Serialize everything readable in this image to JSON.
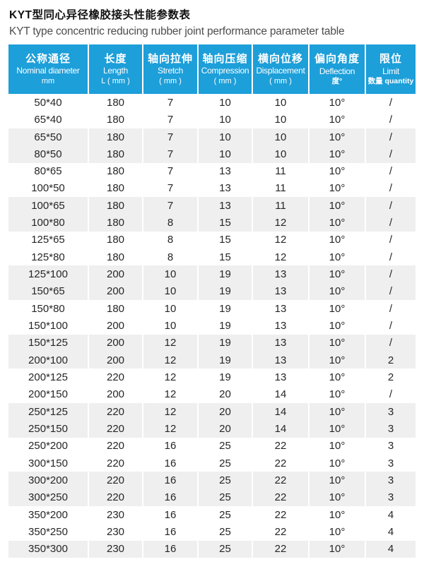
{
  "page": {
    "title_zh": "KYT型同心异径橡胶接头性能参数表",
    "title_en": "KYT type concentric reducing rubber joint performance parameter table"
  },
  "colors": {
    "header_bg": "#1d9fd9",
    "band_bg": "#efefef",
    "body_text": "#262626",
    "subtitle_text": "#4d4d4d"
  },
  "table": {
    "columns": [
      {
        "zh": "公称通径",
        "en": "Nominal diameter",
        "unit": "mm"
      },
      {
        "zh": "长度",
        "en": "Length",
        "unit": "L ( mm )"
      },
      {
        "zh": "轴向拉伸",
        "en": "Stretch",
        "unit": "( mm )"
      },
      {
        "zh": "轴向压缩",
        "en": "Compression",
        "unit": "( mm )"
      },
      {
        "zh": "横向位移",
        "en": "Displacement",
        "unit": "( mm )"
      },
      {
        "zh": "偏向角度",
        "en": "Deflection",
        "unit": "度°"
      },
      {
        "zh": "限位",
        "en": "Limit",
        "unit": "数量 quantity"
      }
    ],
    "rows": [
      [
        "50*40",
        "180",
        "7",
        "10",
        "10",
        "10°",
        "/"
      ],
      [
        "65*40",
        "180",
        "7",
        "10",
        "10",
        "10°",
        "/"
      ],
      [
        "65*50",
        "180",
        "7",
        "10",
        "10",
        "10°",
        "/"
      ],
      [
        "80*50",
        "180",
        "7",
        "10",
        "10",
        "10°",
        "/"
      ],
      [
        "80*65",
        "180",
        "7",
        "13",
        "11",
        "10°",
        "/"
      ],
      [
        "100*50",
        "180",
        "7",
        "13",
        "11",
        "10°",
        "/"
      ],
      [
        "100*65",
        "180",
        "7",
        "13",
        "11",
        "10°",
        "/"
      ],
      [
        "100*80",
        "180",
        "8",
        "15",
        "12",
        "10°",
        "/"
      ],
      [
        "125*65",
        "180",
        "8",
        "15",
        "12",
        "10°",
        "/"
      ],
      [
        "125*80",
        "180",
        "8",
        "15",
        "12",
        "10°",
        "/"
      ],
      [
        "125*100",
        "200",
        "10",
        "19",
        "13",
        "10°",
        "/"
      ],
      [
        "150*65",
        "200",
        "10",
        "19",
        "13",
        "10°",
        "/"
      ],
      [
        "150*80",
        "180",
        "10",
        "19",
        "13",
        "10°",
        "/"
      ],
      [
        "150*100",
        "200",
        "10",
        "19",
        "13",
        "10°",
        "/"
      ],
      [
        "150*125",
        "200",
        "12",
        "19",
        "13",
        "10°",
        "/"
      ],
      [
        "200*100",
        "200",
        "12",
        "19",
        "13",
        "10°",
        "2"
      ],
      [
        "200*125",
        "220",
        "12",
        "19",
        "13",
        "10°",
        "2"
      ],
      [
        "200*150",
        "200",
        "12",
        "20",
        "14",
        "10°",
        "/"
      ],
      [
        "250*125",
        "220",
        "12",
        "20",
        "14",
        "10°",
        "3"
      ],
      [
        "250*150",
        "220",
        "12",
        "20",
        "14",
        "10°",
        "3"
      ],
      [
        "250*200",
        "220",
        "16",
        "25",
        "22",
        "10°",
        "3"
      ],
      [
        "300*150",
        "220",
        "16",
        "25",
        "22",
        "10°",
        "3"
      ],
      [
        "300*200",
        "220",
        "16",
        "25",
        "22",
        "10°",
        "3"
      ],
      [
        "300*250",
        "220",
        "16",
        "25",
        "22",
        "10°",
        "3"
      ],
      [
        "350*200",
        "230",
        "16",
        "25",
        "22",
        "10°",
        "4"
      ],
      [
        "350*250",
        "230",
        "16",
        "25",
        "22",
        "10°",
        "4"
      ],
      [
        "350*300",
        "230",
        "16",
        "25",
        "22",
        "10°",
        "4"
      ]
    ]
  }
}
